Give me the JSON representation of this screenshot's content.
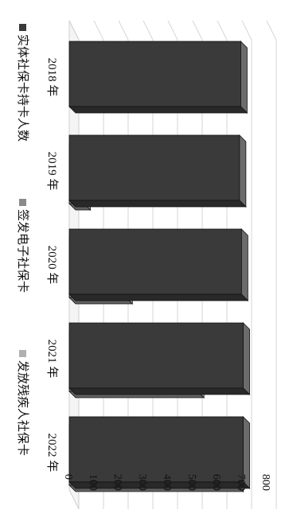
{
  "chart_data": {
    "type": "bar",
    "orientation": "horizontal",
    "style": "3d",
    "categories": [
      "2018 年",
      "2019 年",
      "2020 年",
      "2021 年",
      "2022 年"
    ],
    "series": [
      {
        "name": "实体社保卡持卡人数",
        "values": [
          695,
          690,
          698,
          705,
          705
        ],
        "color": "#3a3a3a"
      },
      {
        "name": "签发电子社保卡",
        "values": [
          0,
          60,
          230,
          520,
          680
        ],
        "color": "#8a8a8a"
      },
      {
        "name": "发放残疾人社保卡",
        "values": [
          0,
          0,
          0,
          0,
          0
        ],
        "color": "#b0b0b0"
      }
    ],
    "axis": {
      "min": 0,
      "max": 800,
      "ticks": [
        "0",
        "100",
        "200",
        "300",
        "400",
        "500",
        "600",
        "700",
        "800"
      ]
    },
    "grid": true,
    "legend_position": "bottom"
  }
}
